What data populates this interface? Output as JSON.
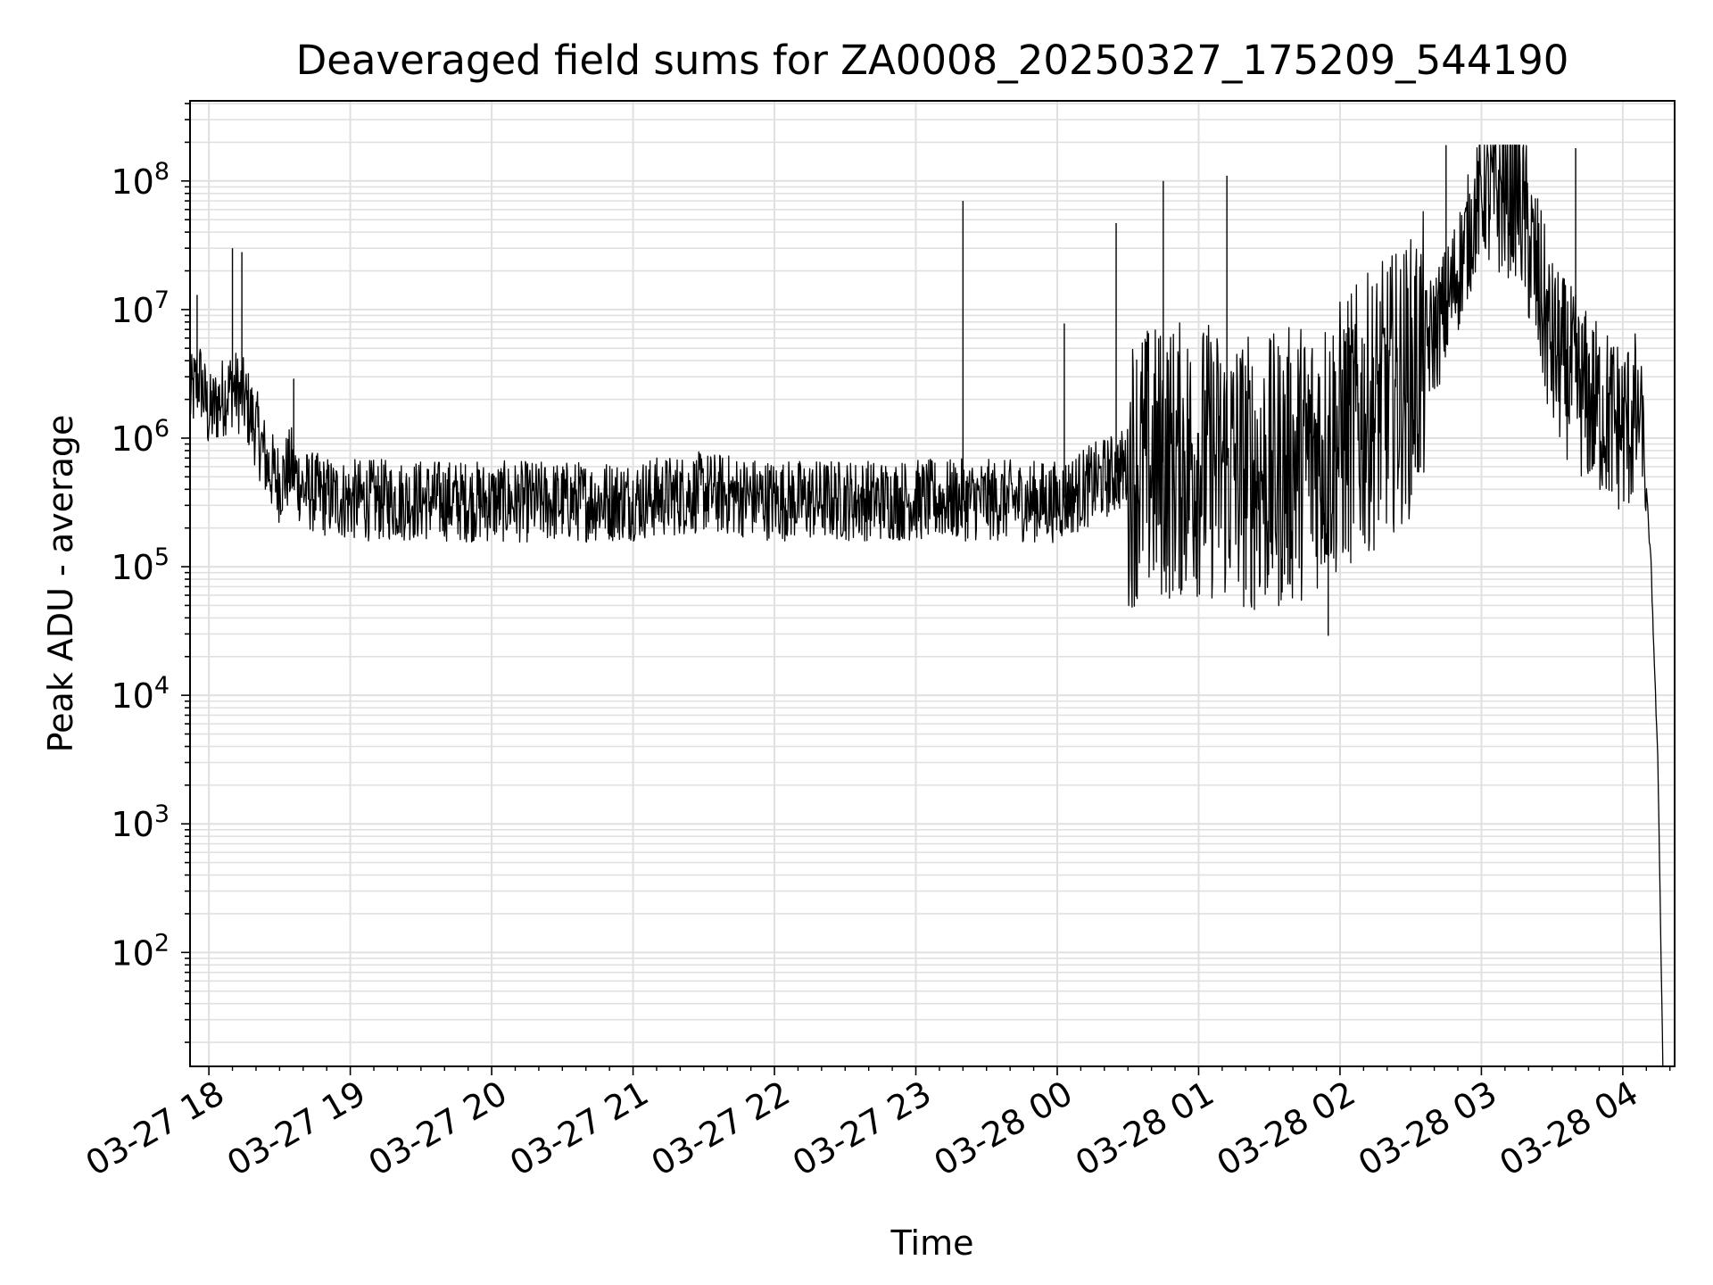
{
  "chart_data": {
    "type": "line",
    "title": "Deaveraged field sums for ZA0008_20250327_175209_544190",
    "xlabel": "Time",
    "ylabel": "Peak ADU - average",
    "x_scale": "time",
    "y_scale": "log",
    "xlim": [
      "2025-03-27 17:52",
      "2025-03-28 04:22"
    ],
    "ylim": [
      13,
      420000000
    ],
    "grid": true,
    "legend": "none",
    "line_color": "#000000",
    "grid_color": "#e0e0e0",
    "x_ticks": [
      {
        "label": "03-27 18",
        "t": "2025-03-27 18:00"
      },
      {
        "label": "03-27 19",
        "t": "2025-03-27 19:00"
      },
      {
        "label": "03-27 20",
        "t": "2025-03-27 20:00"
      },
      {
        "label": "03-27 21",
        "t": "2025-03-27 21:00"
      },
      {
        "label": "03-27 22",
        "t": "2025-03-27 22:00"
      },
      {
        "label": "03-27 23",
        "t": "2025-03-27 23:00"
      },
      {
        "label": "03-28 00",
        "t": "2025-03-28 00:00"
      },
      {
        "label": "03-28 01",
        "t": "2025-03-28 01:00"
      },
      {
        "label": "03-28 02",
        "t": "2025-03-28 02:00"
      },
      {
        "label": "03-28 03",
        "t": "2025-03-28 03:00"
      },
      {
        "label": "03-28 04",
        "t": "2025-03-28 04:00"
      }
    ],
    "y_ticks": [
      {
        "base": "10",
        "exp": "2",
        "value": 100
      },
      {
        "base": "10",
        "exp": "3",
        "value": 1000
      },
      {
        "base": "10",
        "exp": "4",
        "value": 10000
      },
      {
        "base": "10",
        "exp": "5",
        "value": 100000
      },
      {
        "base": "10",
        "exp": "6",
        "value": 1000000
      },
      {
        "base": "10",
        "exp": "7",
        "value": 10000000
      },
      {
        "base": "10",
        "exp": "8",
        "value": 100000000
      }
    ],
    "series": [
      {
        "points": [
          [
            "2025-03-27 17:52",
            2000000
          ],
          [
            "2025-03-27 17:56",
            3000000
          ],
          [
            "2025-03-27 18:00",
            1500000
          ],
          [
            "2025-03-27 18:05",
            2000000
          ],
          [
            "2025-03-27 18:10",
            2500000
          ],
          [
            "2025-03-27 18:15",
            2000000
          ],
          [
            "2025-03-27 18:20",
            1200000
          ],
          [
            "2025-03-27 18:25",
            600000
          ],
          [
            "2025-03-27 18:30",
            450000
          ],
          [
            "2025-03-27 18:35",
            600000
          ],
          [
            "2025-03-27 18:40",
            400000
          ],
          [
            "2025-03-27 18:50",
            350000
          ],
          [
            "2025-03-27 19:00",
            330000
          ],
          [
            "2025-03-27 19:30",
            330000
          ],
          [
            "2025-03-27 20:00",
            320000
          ],
          [
            "2025-03-27 20:30",
            320000
          ],
          [
            "2025-03-27 21:00",
            330000
          ],
          [
            "2025-03-27 21:30",
            380000
          ],
          [
            "2025-03-27 22:00",
            330000
          ],
          [
            "2025-03-27 22:30",
            330000
          ],
          [
            "2025-03-27 23:00",
            330000
          ],
          [
            "2025-03-27 23:30",
            330000
          ],
          [
            "2025-03-28 00:00",
            320000
          ],
          [
            "2025-03-28 00:30",
            600000
          ],
          [
            "2025-03-28 01:00",
            700000
          ],
          [
            "2025-03-28 01:30",
            500000
          ],
          [
            "2025-03-28 02:00",
            1000000
          ],
          [
            "2025-03-28 02:30",
            3000000
          ],
          [
            "2025-03-28 02:45",
            10000000
          ],
          [
            "2025-03-28 03:00",
            80000000
          ],
          [
            "2025-03-28 03:15",
            90000000
          ],
          [
            "2025-03-28 03:30",
            5000000
          ],
          [
            "2025-03-28 03:45",
            2000000
          ],
          [
            "2025-03-28 04:00",
            1200000
          ],
          [
            "2025-03-28 04:08",
            1500000
          ],
          [
            "2025-03-28 04:12",
            100000
          ],
          [
            "2025-03-28 04:15",
            2500
          ],
          [
            "2025-03-28 04:17",
            13
          ]
        ],
        "spikes": [
          [
            "2025-03-27 17:55",
            13000000
          ],
          [
            "2025-03-27 18:10",
            30000000
          ],
          [
            "2025-03-27 18:14",
            28000000
          ],
          [
            "2025-03-27 18:36",
            2900000
          ],
          [
            "2025-03-27 23:20",
            70000000
          ],
          [
            "2025-03-28 00:03",
            7800000
          ],
          [
            "2025-03-28 00:25",
            47000000
          ],
          [
            "2025-03-28 00:45",
            100000000
          ],
          [
            "2025-03-28 01:12",
            110000000
          ],
          [
            "2025-03-28 01:55",
            29000
          ],
          [
            "2025-03-28 02:45",
            190000000
          ],
          [
            "2025-03-28 03:40",
            180000000
          ]
        ]
      }
    ]
  }
}
